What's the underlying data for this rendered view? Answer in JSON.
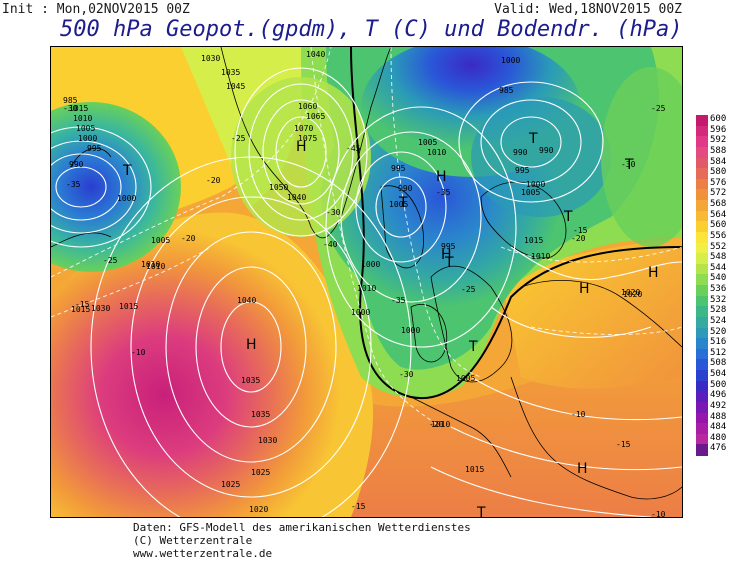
{
  "header": {
    "init": "Init : Mon,02NOV2015 00Z",
    "valid": "Valid: Wed,18NOV2015 00Z",
    "title": "500 hPa Geopot.(gpdm), T (C) und Bodendr. (hPa)"
  },
  "footer": {
    "line1": "Daten: GFS-Modell des amerikanischen Wetterdienstes",
    "line2": "(C) Wetterzentrale",
    "line3": "www.wetterzentrale.de"
  },
  "legend": {
    "values": [
      "600",
      "596",
      "592",
      "588",
      "584",
      "580",
      "576",
      "572",
      "568",
      "564",
      "560",
      "556",
      "552",
      "548",
      "544",
      "540",
      "536",
      "532",
      "528",
      "524",
      "520",
      "516",
      "512",
      "508",
      "504",
      "500",
      "496",
      "492",
      "488",
      "484",
      "480",
      "476"
    ],
    "colors": [
      "#c41a6e",
      "#d42a7c",
      "#e03a86",
      "#e44b82",
      "#e05a6a",
      "#e66c58",
      "#ec7e46",
      "#f0923c",
      "#f4a636",
      "#f8ba34",
      "#fbcf30",
      "#fde43a",
      "#eef046",
      "#d6ee4a",
      "#b4e44a",
      "#8edc52",
      "#6ad05a",
      "#4cc470",
      "#3cb888",
      "#34aaa0",
      "#2e9ab8",
      "#2a86cc",
      "#2a6ed8",
      "#2a56d8",
      "#2a40d0",
      "#3a2ac4",
      "#5a1ebc",
      "#7a18b4",
      "#9616ac",
      "#a81ea4",
      "#b8289e",
      "#6a1a8c"
    ]
  },
  "map": {
    "pressure_labels": [
      {
        "text": "1030",
        "id": "p1030a"
      },
      {
        "text": "1035",
        "id": "p1035a"
      },
      {
        "text": "1040",
        "id": "p1040a"
      },
      {
        "text": "1045",
        "id": "p1045a"
      },
      {
        "text": "1060",
        "id": "p1060"
      },
      {
        "text": "1065",
        "id": "p1065"
      },
      {
        "text": "1070",
        "id": "p1070"
      },
      {
        "text": "1075",
        "id": "p1075"
      },
      {
        "text": "1050",
        "id": "p1050"
      },
      {
        "text": "1040",
        "id": "p1040b"
      },
      {
        "text": "1035",
        "id": "p1035b"
      },
      {
        "text": "1030",
        "id": "p1030b"
      },
      {
        "text": "1025",
        "id": "p1025"
      },
      {
        "text": "1020",
        "id": "p1020"
      },
      {
        "text": "1015",
        "id": "p1015a"
      },
      {
        "text": "1010",
        "id": "p1010a"
      },
      {
        "text": "1005",
        "id": "p1005a"
      },
      {
        "text": "1000",
        "id": "p1000a"
      },
      {
        "text": "995",
        "id": "p995a"
      },
      {
        "text": "990",
        "id": "p990a"
      },
      {
        "text": "985",
        "id": "p985"
      },
      {
        "text": "1015",
        "id": "p1015b"
      },
      {
        "text": "1010",
        "id": "p1010b"
      },
      {
        "text": "1005",
        "id": "p1005b"
      },
      {
        "text": "1000",
        "id": "p1000b"
      },
      {
        "text": "995",
        "id": "p995b"
      },
      {
        "text": "990",
        "id": "p990b"
      },
      {
        "text": "1000",
        "id": "p1000c"
      },
      {
        "text": "1005",
        "id": "p1005c"
      },
      {
        "text": "1010",
        "id": "p1010c"
      },
      {
        "text": "1015",
        "id": "p1015c"
      },
      {
        "text": "1020",
        "id": "p1020b"
      },
      {
        "text": "995",
        "id": "p995c"
      },
      {
        "text": "990",
        "id": "p990c"
      },
      {
        "text": "1000",
        "id": "p1000d"
      },
      {
        "text": "1005",
        "id": "p1005d"
      },
      {
        "text": "1010",
        "id": "p1010d"
      },
      {
        "text": "1000",
        "id": "p1000e"
      },
      {
        "text": "995",
        "id": "p995d"
      },
      {
        "text": "1005",
        "id": "p1005e"
      },
      {
        "text": "1010",
        "id": "p1010e"
      },
      {
        "text": "1015",
        "id": "p1015d"
      },
      {
        "text": "1020",
        "id": "p1020c"
      },
      {
        "text": "1010",
        "id": "p1010f"
      },
      {
        "text": "1005",
        "id": "p1005f"
      },
      {
        "text": "1000",
        "id": "p1000f"
      },
      {
        "text": "1040",
        "id": "p1040c"
      },
      {
        "text": "1030",
        "id": "p1030c"
      },
      {
        "text": "1035",
        "id": "p1035c"
      },
      {
        "text": "1025",
        "id": "p1025b"
      },
      {
        "text": "1015",
        "id": "p1015e"
      },
      {
        "text": "1010",
        "id": "p1010g"
      },
      {
        "text": "985",
        "id": "p985b"
      },
      {
        "text": "990",
        "id": "p990d"
      },
      {
        "text": "1000",
        "id": "p1000g"
      }
    ],
    "temp_labels": [
      {
        "text": "-35"
      },
      {
        "text": "-30"
      },
      {
        "text": "-25"
      },
      {
        "text": "-20"
      },
      {
        "text": "-15"
      },
      {
        "text": "-10"
      },
      {
        "text": "-20"
      },
      {
        "text": "-25"
      },
      {
        "text": "-30"
      },
      {
        "text": "-35"
      },
      {
        "text": "-40"
      },
      {
        "text": "-45"
      },
      {
        "text": "-35"
      },
      {
        "text": "-30"
      },
      {
        "text": "-25"
      },
      {
        "text": "-20"
      },
      {
        "text": "-15"
      },
      {
        "text": "-10"
      },
      {
        "text": "-15"
      },
      {
        "text": "-20"
      },
      {
        "text": "-25"
      },
      {
        "text": "-30"
      },
      {
        "text": "-15"
      },
      {
        "text": "-10"
      }
    ],
    "centers": [
      {
        "type": "T"
      },
      {
        "type": "T"
      },
      {
        "type": "T"
      },
      {
        "type": "T"
      },
      {
        "type": "T"
      },
      {
        "type": "T"
      },
      {
        "type": "T"
      },
      {
        "type": "T"
      },
      {
        "type": "H"
      },
      {
        "type": "H"
      },
      {
        "type": "H"
      },
      {
        "type": "H"
      },
      {
        "type": "H"
      },
      {
        "type": "H"
      },
      {
        "type": "H"
      }
    ]
  }
}
